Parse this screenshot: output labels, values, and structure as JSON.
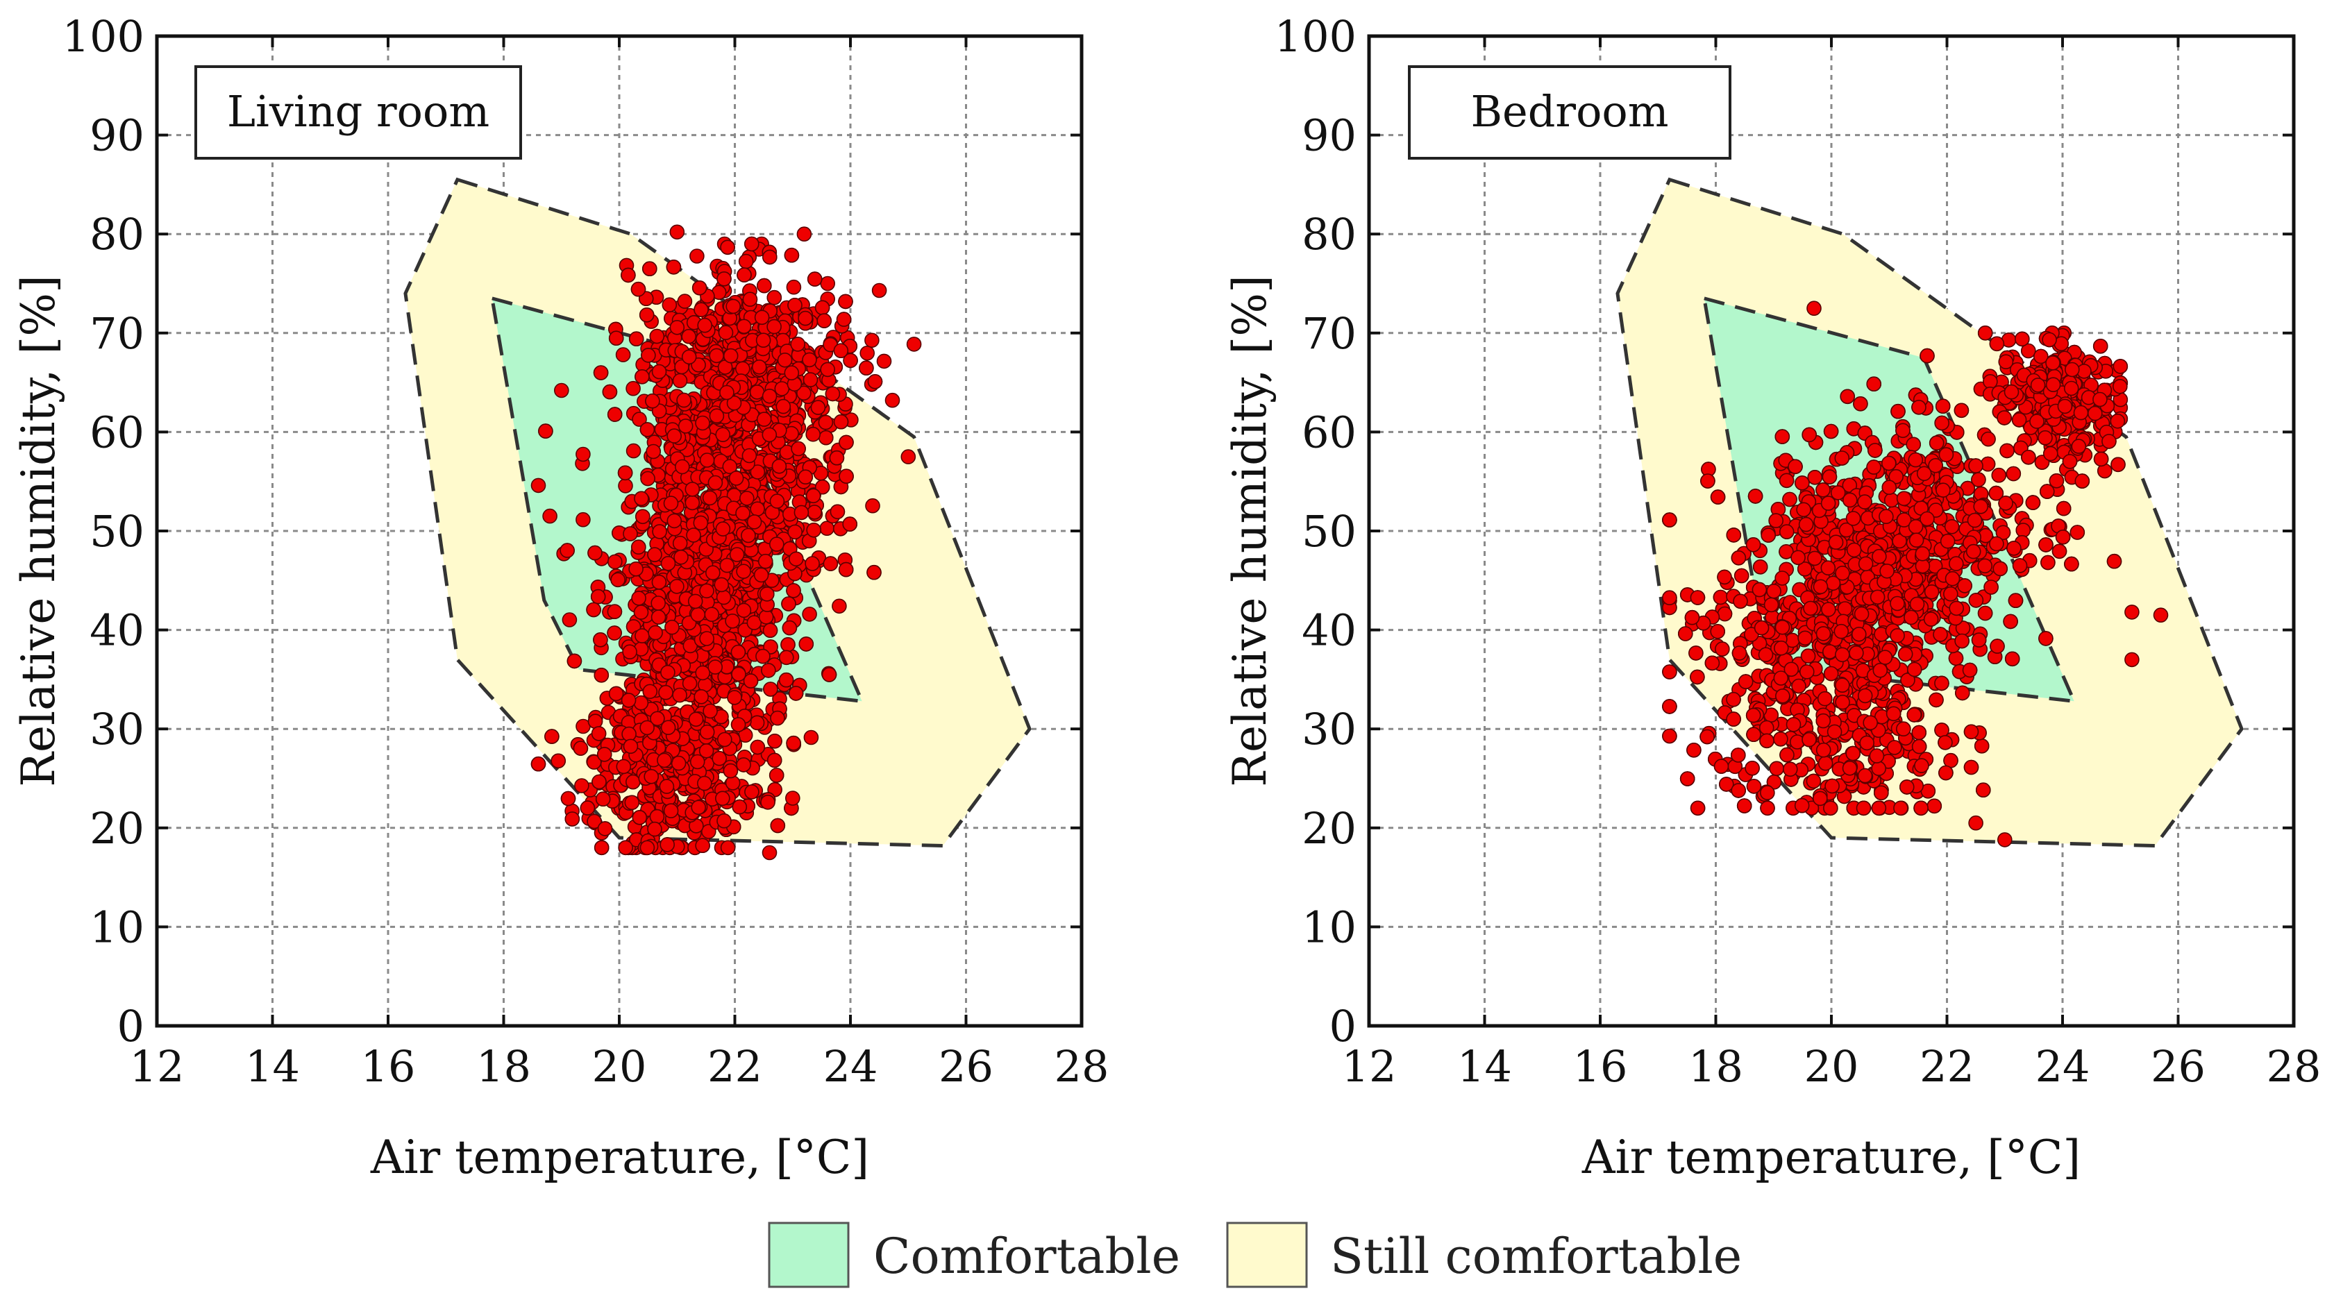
{
  "chart_data": [
    {
      "type": "scatter",
      "title": "Living room",
      "xlabel": "Air temperature, [°C]",
      "ylabel": "Relative humidity, [%]",
      "xlim": [
        12,
        28
      ],
      "ylim": [
        0,
        100
      ],
      "xticks": [
        "12",
        "14",
        "16",
        "18",
        "20",
        "22",
        "24",
        "26",
        "28"
      ],
      "yticks": [
        "0",
        "10",
        "20",
        "30",
        "40",
        "50",
        "60",
        "70",
        "80",
        "90",
        "100"
      ],
      "grid": true,
      "zones": {
        "still_comfortable": [
          [
            17.2,
            85.5
          ],
          [
            20.2,
            80
          ],
          [
            25.1,
            59.5
          ],
          [
            27.1,
            30
          ],
          [
            25.6,
            18.2
          ],
          [
            20.0,
            19.0
          ],
          [
            17.2,
            37
          ],
          [
            16.3,
            74
          ]
        ],
        "comfortable": [
          [
            17.8,
            73.5
          ],
          [
            21.6,
            67.5
          ],
          [
            22.5,
            55.5
          ],
          [
            24.2,
            32.8
          ],
          [
            19.3,
            36
          ],
          [
            18.7,
            43
          ],
          [
            17.8,
            73.5
          ]
        ]
      },
      "series": [
        {
          "name": "Measurements",
          "cloud_summary": {
            "x_range": [
              18.6,
              25.1
            ],
            "y_range": [
              17.5,
              80.2
            ],
            "core_center": [
              21.6,
              47
            ],
            "high_humidity_lobe": [
              [
                22.0,
                24.6
              ],
              [
                58,
                78
              ]
            ]
          },
          "outliers": [
            [
              21.0,
              80.2
            ],
            [
              23.2,
              80.0
            ],
            [
              19.0,
              64.2
            ],
            [
              18.6,
              54.6
            ],
            [
              18.8,
              51.5
            ],
            [
              22.6,
              17.5
            ],
            [
              23.0,
              23.0
            ],
            [
              24.5,
              74.3
            ],
            [
              25.0,
              57.5
            ]
          ]
        }
      ]
    },
    {
      "type": "scatter",
      "title": "Bedroom",
      "xlabel": "Air temperature, [°C]",
      "ylabel": "Relative humidity, [%]",
      "xlim": [
        12,
        28
      ],
      "ylim": [
        0,
        100
      ],
      "xticks": [
        "12",
        "14",
        "16",
        "18",
        "20",
        "22",
        "24",
        "26",
        "28"
      ],
      "yticks": [
        "0",
        "10",
        "20",
        "30",
        "40",
        "50",
        "60",
        "70",
        "80",
        "90",
        "100"
      ],
      "grid": true,
      "zones": {
        "still_comfortable": [
          [
            17.2,
            85.5
          ],
          [
            20.2,
            80
          ],
          [
            25.1,
            59.5
          ],
          [
            27.1,
            30
          ],
          [
            25.6,
            18.2
          ],
          [
            20.0,
            19.0
          ],
          [
            17.2,
            37
          ],
          [
            16.3,
            74
          ]
        ],
        "comfortable": [
          [
            17.8,
            73.5
          ],
          [
            21.6,
            67.5
          ],
          [
            22.5,
            55.5
          ],
          [
            24.2,
            32.8
          ],
          [
            19.3,
            36
          ],
          [
            18.7,
            43
          ],
          [
            17.8,
            73.5
          ]
        ]
      },
      "series": [
        {
          "name": "Measurements",
          "cloud_summary": {
            "x_range": [
              17.2,
              25.7
            ],
            "y_range": [
              18.8,
              72.5
            ],
            "core_center": [
              20.6,
              45
            ],
            "high_humidity_lobe": [
              [
                23.0,
                25.0
              ],
              [
                58,
                70
              ]
            ]
          },
          "outliers": [
            [
              19.7,
              72.5
            ],
            [
              25.2,
              41.8
            ],
            [
              25.7,
              41.5
            ],
            [
              25.2,
              37.0
            ],
            [
              23.0,
              18.8
            ],
            [
              22.5,
              20.5
            ],
            [
              21.2,
              22.0
            ]
          ]
        }
      ]
    }
  ],
  "legend": {
    "items": [
      {
        "label": "Comfortable",
        "color": "#b3f7cc"
      },
      {
        "label": "Still comfortable",
        "color": "#fffacd"
      }
    ]
  },
  "colors": {
    "points": "#ee0000",
    "point_edge": "#5a0000",
    "frame": "#111111"
  }
}
